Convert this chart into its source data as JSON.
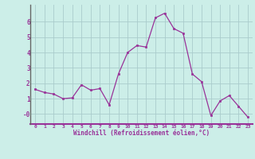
{
  "x": [
    0,
    1,
    2,
    3,
    4,
    5,
    6,
    7,
    8,
    9,
    10,
    11,
    12,
    13,
    14,
    15,
    16,
    17,
    18,
    19,
    20,
    21,
    22,
    23
  ],
  "y": [
    1.6,
    1.4,
    1.3,
    1.0,
    1.05,
    1.9,
    1.55,
    1.65,
    0.6,
    2.6,
    4.0,
    4.45,
    4.35,
    6.25,
    6.55,
    5.55,
    5.25,
    2.6,
    2.1,
    -0.1,
    0.85,
    1.2,
    0.5,
    -0.2
  ],
  "line_color": "#993399",
  "marker": "s",
  "marker_size": 2.0,
  "bg_color": "#cceee8",
  "grid_color": "#aacccc",
  "xlabel": "Windchill (Refroidissement éolien,°C)",
  "xlabel_color": "#993399",
  "tick_color": "#993399",
  "yticks": [
    0,
    1,
    2,
    3,
    4,
    5,
    6
  ],
  "ytick_labels": [
    "-0",
    "1",
    "2",
    "3",
    "4",
    "5",
    "6"
  ],
  "xtick_labels": [
    "0",
    "1",
    "2",
    "3",
    "4",
    "5",
    "6",
    "7",
    "8",
    "9",
    "10",
    "11",
    "12",
    "13",
    "14",
    "15",
    "16",
    "17",
    "18",
    "19",
    "20",
    "21",
    "22",
    "23"
  ],
  "ylim": [
    -0.65,
    7.1
  ],
  "xlim": [
    -0.5,
    23.5
  ]
}
